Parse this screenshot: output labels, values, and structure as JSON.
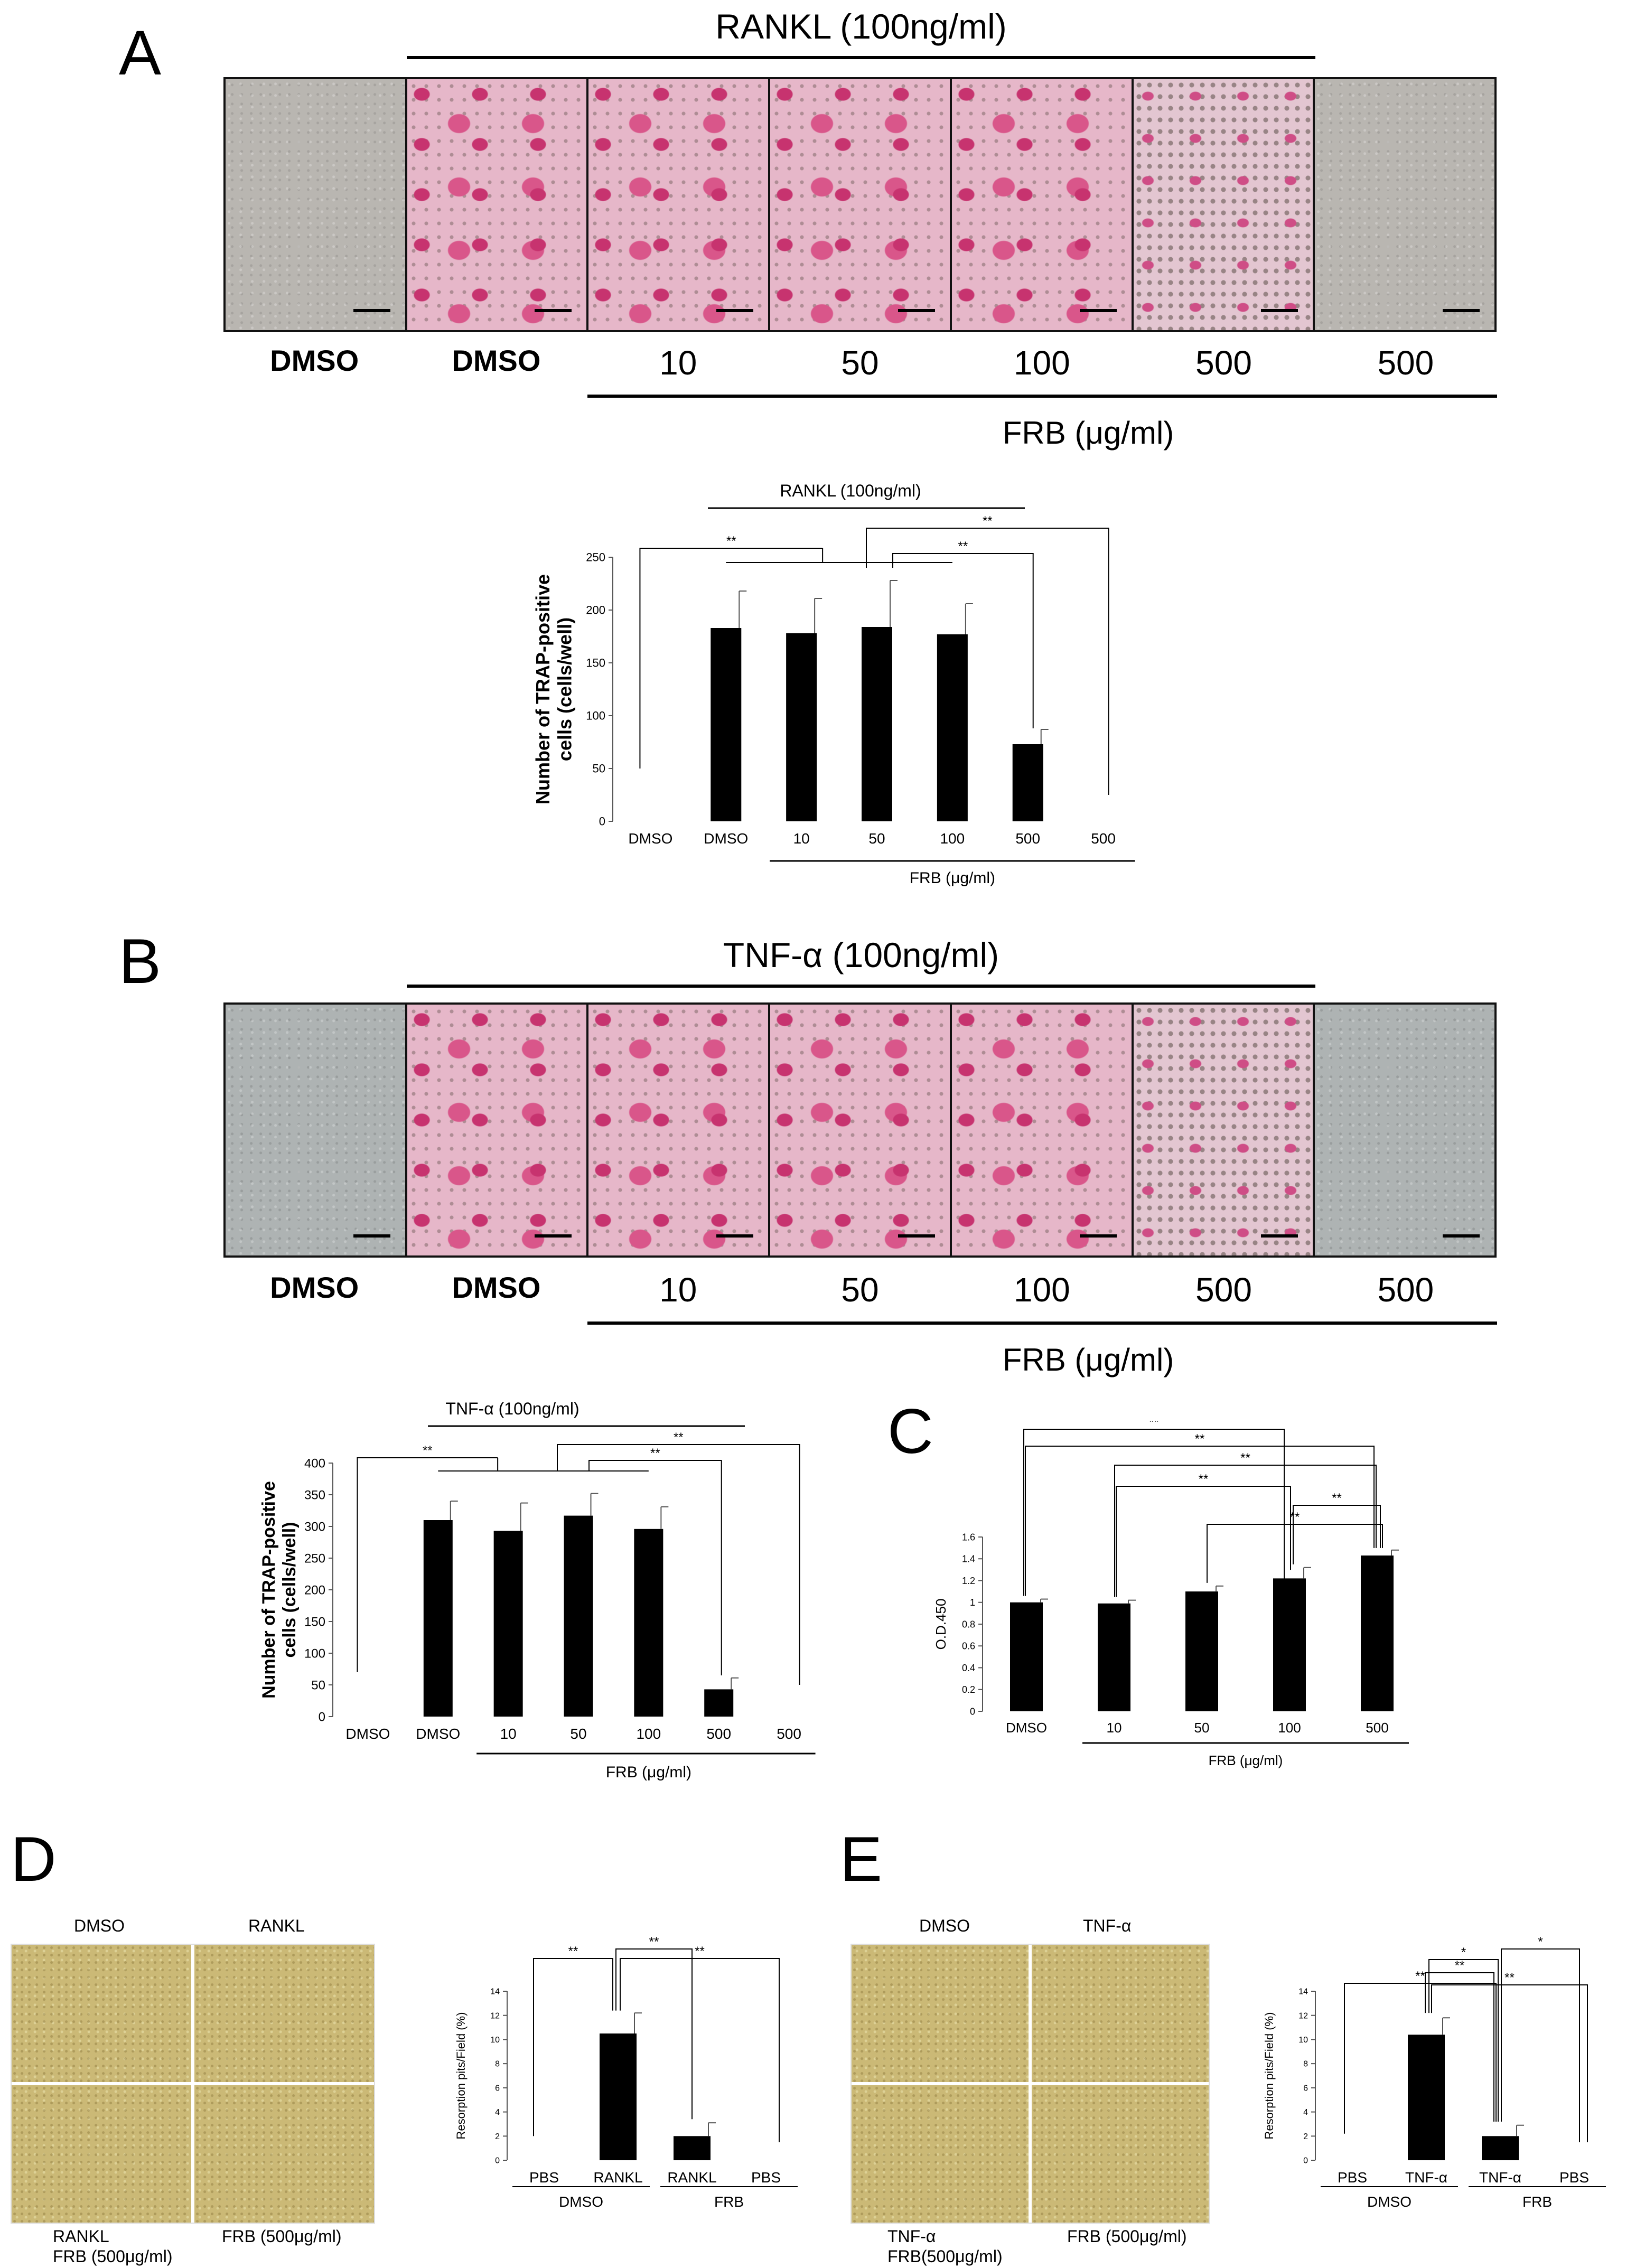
{
  "panelA": {
    "letter": "A",
    "title": "RANKL (100ng/ml)",
    "lane_labels": [
      "DMSO",
      "DMSO",
      "10",
      "50",
      "100",
      "500",
      "500"
    ],
    "frb_label": "FRB (μg/ml)"
  },
  "chartA": {
    "type": "bar",
    "title": "RANKL (100ng/ml)",
    "ylabel": "Number of TRAP-positive cells (cells/well)",
    "ylabel_line1": "Number of TRAP-positive",
    "ylabel_line2": "cells (cells/well)",
    "categories": [
      "DMSO",
      "DMSO",
      "10",
      "50",
      "100",
      "500",
      "500"
    ],
    "values": [
      0,
      183,
      178,
      184,
      177,
      73,
      0
    ],
    "errors": [
      0,
      35,
      33,
      44,
      29,
      14,
      0
    ],
    "ylim": [
      0,
      250
    ],
    "yticks": [
      "0",
      "50",
      "100",
      "150",
      "200",
      "250"
    ],
    "xgroup_label": "FRB (μg/ml)",
    "sig": [
      "**",
      "**",
      "**"
    ]
  },
  "panelB": {
    "letter": "B",
    "title": "TNF-α (100ng/ml)",
    "lane_labels": [
      "DMSO",
      "DMSO",
      "10",
      "50",
      "100",
      "500",
      "500"
    ],
    "frb_label": "FRB (μg/ml)"
  },
  "chartB": {
    "type": "bar",
    "title": "TNF-α (100ng/ml)",
    "ylabel_line1": "Number of TRAP-positive",
    "ylabel_line2": "cells (cells/well)",
    "categories": [
      "DMSO",
      "DMSO",
      "10",
      "50",
      "100",
      "500",
      "500"
    ],
    "values": [
      0,
      310,
      293,
      317,
      296,
      43,
      0
    ],
    "errors": [
      0,
      30,
      44,
      35,
      35,
      18,
      0
    ],
    "ylim": [
      0,
      400
    ],
    "yticks": [
      "0",
      "50",
      "100",
      "150",
      "200",
      "250",
      "300",
      "350",
      "400"
    ],
    "xgroup_label": "FRB (μg/ml)",
    "sig": [
      "**",
      "**",
      "**"
    ]
  },
  "chartC": {
    "letter": "C",
    "type": "bar",
    "ylabel": "O.D.450",
    "categories": [
      "DMSO",
      "10",
      "50",
      "100",
      "500"
    ],
    "values": [
      1.0,
      0.99,
      1.1,
      1.22,
      1.43
    ],
    "errors": [
      0.03,
      0.03,
      0.05,
      0.1,
      0.05
    ],
    "ylim": [
      0,
      1.6
    ],
    "yticks": [
      "0",
      "0.2",
      "0.4",
      "0.6",
      "0.8",
      "1",
      "1.2",
      "1.4",
      "1.6"
    ],
    "xgroup_label": "FRB (μg/ml)",
    "sig": [
      "**",
      "**",
      "**",
      "**",
      "**",
      "**"
    ]
  },
  "panelD": {
    "letter": "D",
    "img_top_left": "DMSO",
    "img_top_right": "RANKL",
    "img_bottom_left_1": "RANKL",
    "img_bottom_left_2": "FRB (500μg/ml)",
    "img_bottom_right": "FRB (500μg/ml)"
  },
  "chartD": {
    "type": "bar",
    "ylabel": "Resorption pits/Field (%)",
    "categories": [
      "PBS",
      "RANKL",
      "RANKL",
      "PBS"
    ],
    "groups": [
      "DMSO",
      "FRB"
    ],
    "values": [
      0,
      10.5,
      2.0,
      0
    ],
    "errors": [
      0,
      1.7,
      1.1,
      0
    ],
    "ylim": [
      0,
      14
    ],
    "yticks": [
      "0",
      "2",
      "4",
      "6",
      "8",
      "10",
      "12",
      "14"
    ],
    "sig": [
      "**",
      "**",
      "**"
    ]
  },
  "panelE": {
    "letter": "E",
    "img_top_left": "DMSO",
    "img_top_right": "TNF-α",
    "img_bottom_left_1": "TNF-α",
    "img_bottom_left_2": "FRB(500μg/ml)",
    "img_bottom_right": "FRB (500μg/ml)"
  },
  "chartE": {
    "type": "bar",
    "ylabel": "Resorption pits/Field (%)",
    "categories": [
      "PBS",
      "TNF-α",
      "TNF-α",
      "PBS"
    ],
    "groups": [
      "DMSO",
      "FRB"
    ],
    "values": [
      0,
      10.4,
      2.0,
      0
    ],
    "errors": [
      0,
      1.4,
      0.9,
      0
    ],
    "ylim": [
      0,
      14
    ],
    "yticks": [
      "0",
      "2",
      "4",
      "6",
      "8",
      "10",
      "12",
      "14"
    ],
    "sig": [
      "*",
      "**",
      "**",
      "*",
      "**"
    ]
  }
}
